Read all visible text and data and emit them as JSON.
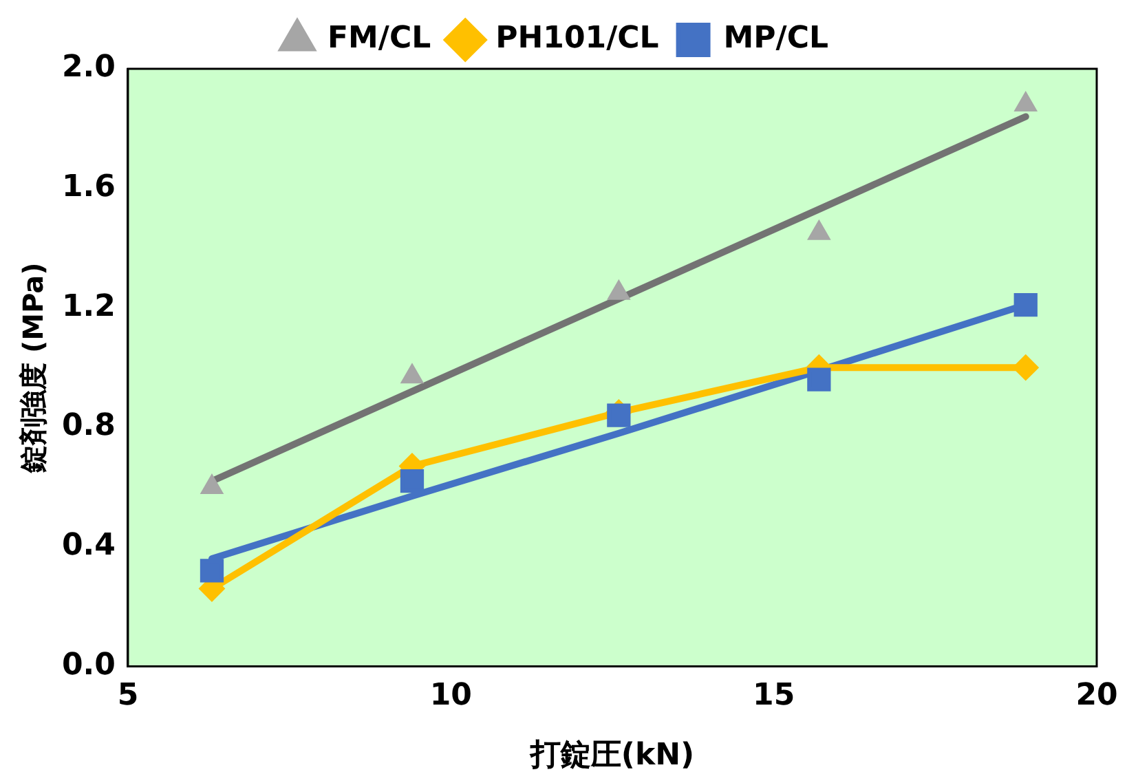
{
  "chart_data": {
    "type": "scatter",
    "xlabel": "打錠圧(kN)",
    "ylabel": "錠剤強度 (MPa)",
    "xlim": [
      5,
      20
    ],
    "xticks": [
      5,
      10,
      15,
      20
    ],
    "ylim": [
      0,
      2
    ],
    "yticks": [
      {
        "value": 0,
        "label": "0.0"
      },
      {
        "value": 0.4,
        "label": "0.4"
      },
      {
        "value": 0.8,
        "label": "0.8"
      },
      {
        "value": 1.2,
        "label": "1.2"
      },
      {
        "value": 1.6,
        "label": "1.6"
      },
      {
        "value": 2,
        "label": "2.0"
      }
    ],
    "grid": false,
    "legend": "top",
    "x": [
      6.3,
      9.4,
      12.6,
      15.7,
      18.9
    ],
    "series": [
      {
        "type": "line",
        "color": "#737373",
        "marker": "none",
        "values": [
          0.62,
          0.92,
          1.23,
          1.53,
          1.84
        ]
      },
      {
        "type": "line",
        "color": "#4472c4",
        "marker": "none",
        "values": [
          0.36,
          0.57,
          0.78,
          0.99,
          1.21
        ]
      },
      {
        "name": "FM/CL",
        "type": "scatter",
        "color": "#a6a6a6",
        "marker": "triangle",
        "values": [
          0.6,
          0.97,
          1.25,
          1.45,
          1.88
        ]
      },
      {
        "name": "PH101/CL",
        "type": "line",
        "color": "#ffc000",
        "marker": "diamond",
        "values": [
          0.26,
          0.67,
          0.85,
          1.0,
          1.0
        ]
      },
      {
        "name": "MP/CL",
        "type": "scatter",
        "color": "#4472c4",
        "marker": "square",
        "values": [
          0.32,
          0.62,
          0.84,
          0.96,
          1.21
        ]
      }
    ]
  }
}
